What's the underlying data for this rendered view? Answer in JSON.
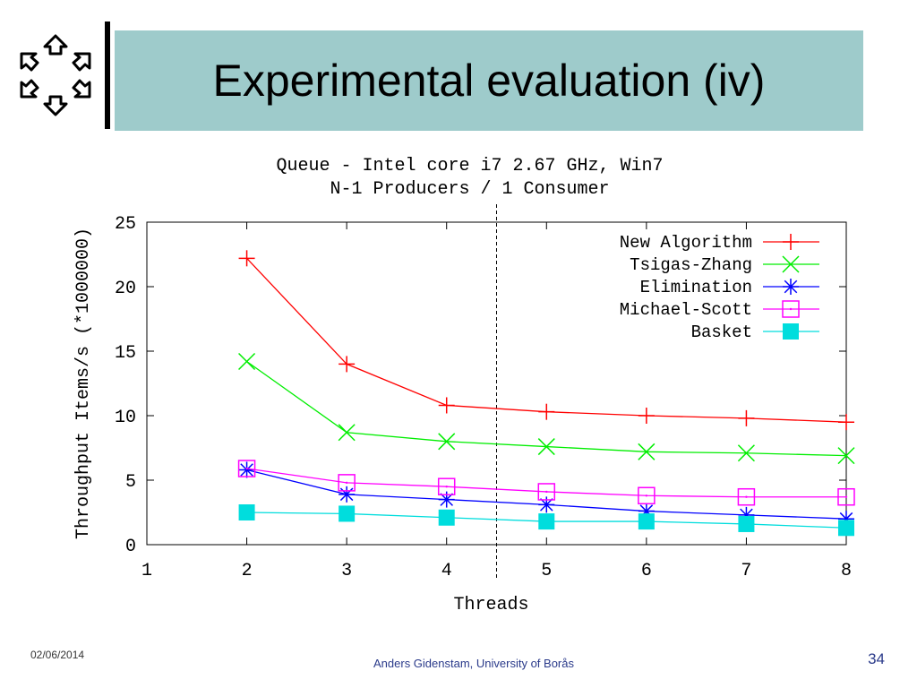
{
  "slide": {
    "title": "Experimental evaluation (iv)",
    "date": "02/06/2014",
    "author": "Anders Gidenstam, University of Borås",
    "page_number": "34"
  },
  "logo": {
    "icon": "hexagon-arrows-logo-icon"
  },
  "chart_data": {
    "type": "line",
    "title": "Queue - Intel core i7 2.67 GHz, Win7",
    "subtitle": "N-1 Producers / 1 Consumer",
    "xlabel": "Threads",
    "ylabel": "Throughput Items/s (*1000000)",
    "xlim": [
      1,
      8
    ],
    "ylim": [
      0,
      25
    ],
    "xticks": [
      1,
      2,
      3,
      4,
      5,
      6,
      7,
      8
    ],
    "yticks": [
      0,
      5,
      10,
      15,
      20,
      25
    ],
    "grid": false,
    "legend_position": "top-right",
    "vertical_marker_x": 4.5,
    "x": [
      2,
      3,
      4,
      5,
      6,
      7,
      8
    ],
    "series": [
      {
        "name": "New Algorithm",
        "marker": "plus",
        "color": "#ff0000",
        "values": [
          22.2,
          14.0,
          10.8,
          10.3,
          10.0,
          9.8,
          9.5
        ]
      },
      {
        "name": "Tsigas-Zhang",
        "marker": "cross",
        "color": "#00ee00",
        "values": [
          14.2,
          8.7,
          8.0,
          7.6,
          7.2,
          7.1,
          6.9
        ]
      },
      {
        "name": "Elimination",
        "marker": "star",
        "color": "#0000ff",
        "values": [
          5.8,
          3.9,
          3.5,
          3.1,
          2.6,
          2.3,
          2.0
        ]
      },
      {
        "name": "Michael-Scott",
        "marker": "square-dot",
        "color": "#ff00ff",
        "values": [
          5.9,
          4.8,
          4.5,
          4.1,
          3.8,
          3.7,
          3.7
        ]
      },
      {
        "name": "Basket",
        "marker": "filled-square",
        "color": "#00dddd",
        "values": [
          2.5,
          2.4,
          2.1,
          1.8,
          1.8,
          1.6,
          1.3
        ]
      }
    ]
  }
}
